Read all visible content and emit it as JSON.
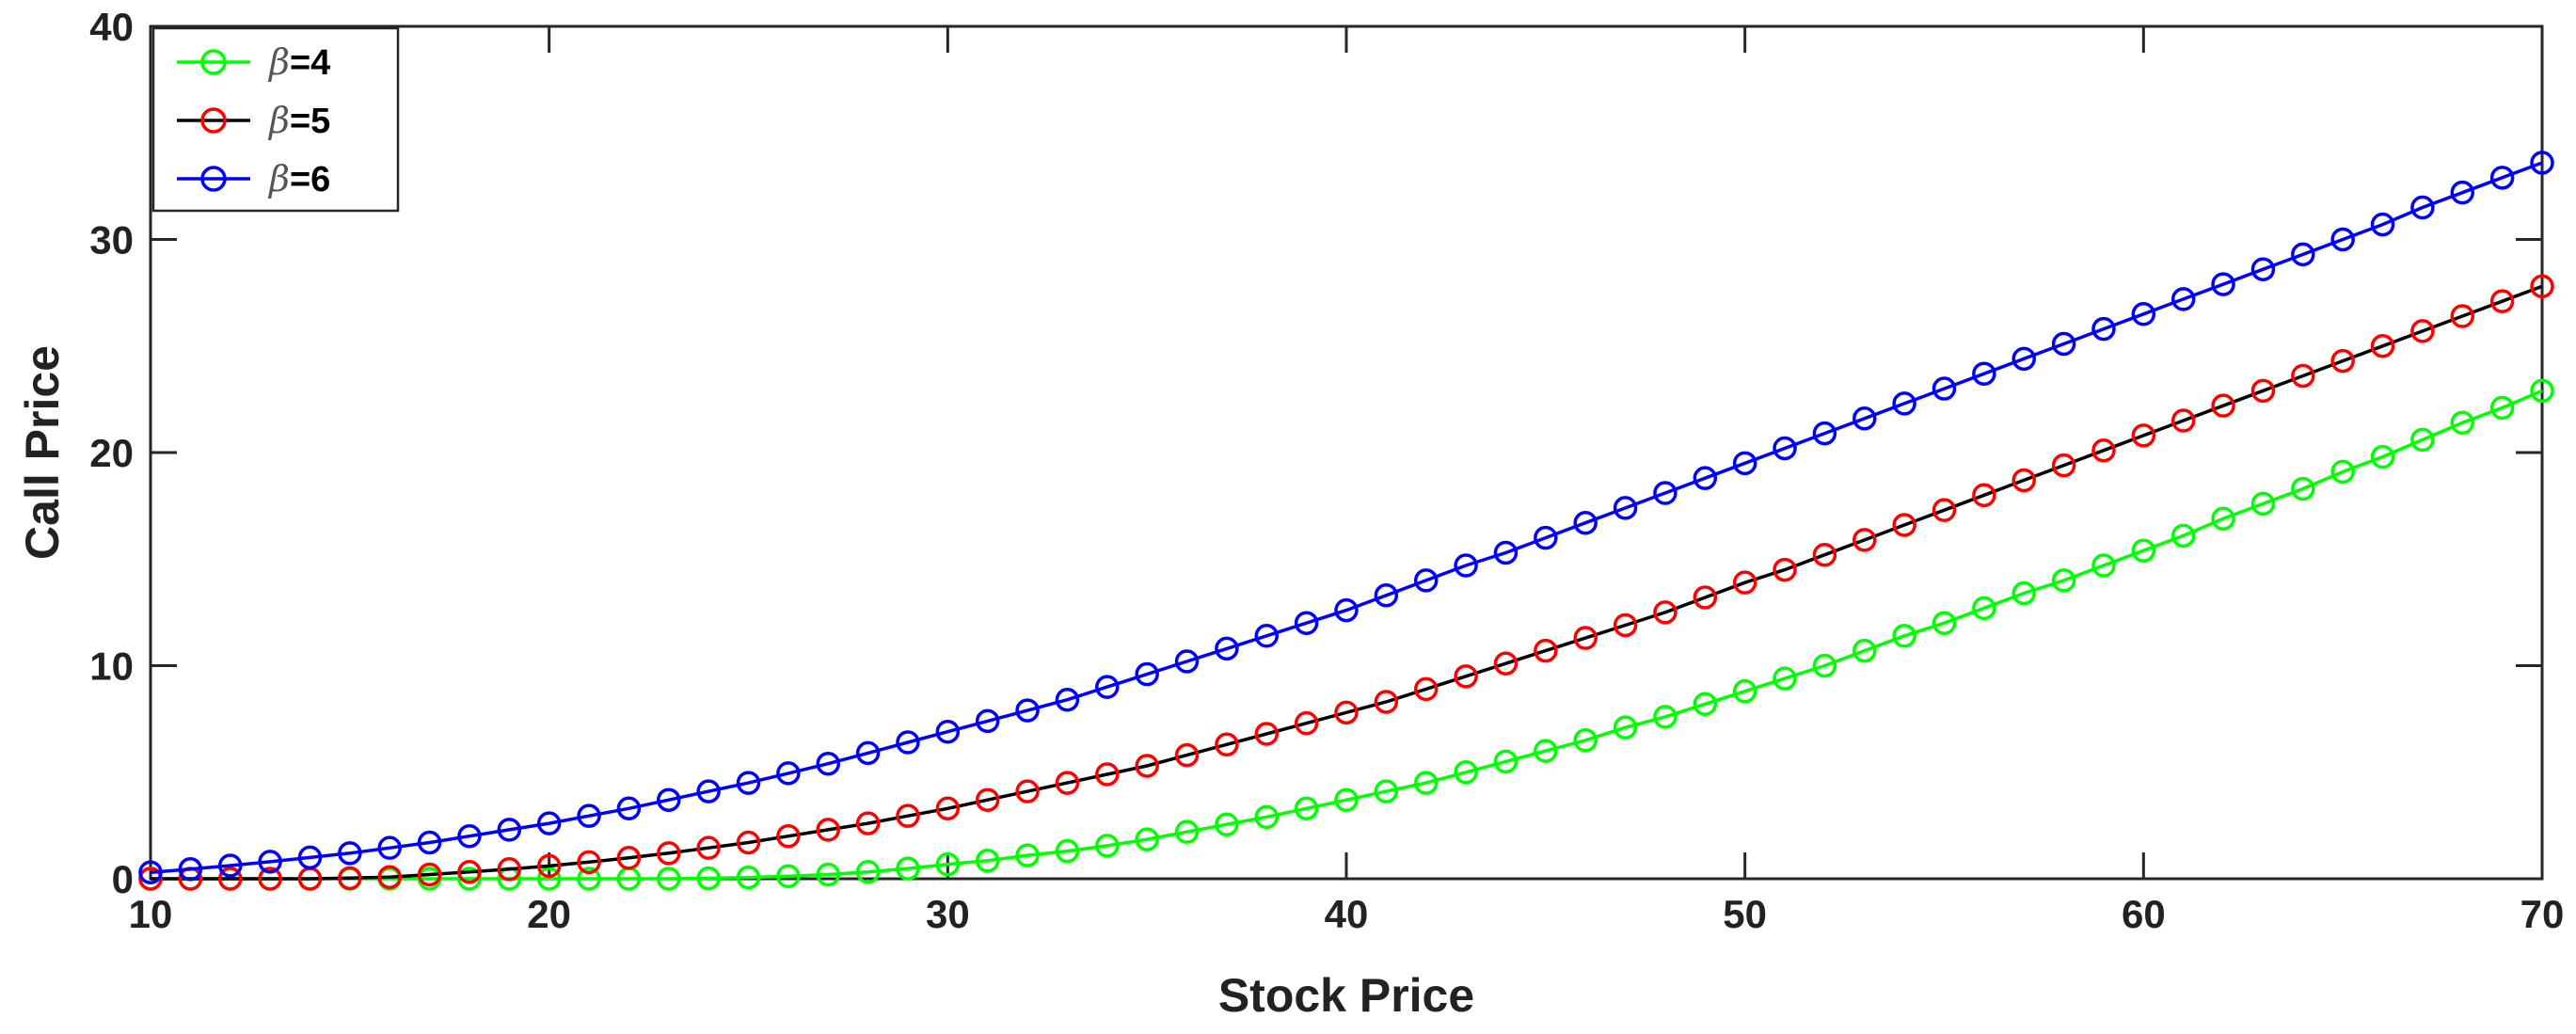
{
  "chart_data": {
    "type": "line",
    "title": "",
    "xlabel": "Stock Price",
    "ylabel": "Call Price",
    "xlim": [
      10,
      70
    ],
    "ylim": [
      0,
      40
    ],
    "xticks": [
      "10",
      "20",
      "30",
      "40",
      "50",
      "60",
      "70"
    ],
    "yticks": [
      "0",
      "10",
      "20",
      "30",
      "40"
    ],
    "grid": false,
    "legend_position": "top-left",
    "marker": "circle-open",
    "x": [
      10,
      11,
      12,
      13,
      14,
      15,
      16,
      17,
      18,
      19,
      20,
      21,
      22,
      23,
      24,
      25,
      26,
      27,
      28,
      29,
      30,
      31,
      32,
      33,
      34,
      35,
      36,
      37,
      38,
      39,
      40,
      41,
      42,
      43,
      44,
      45,
      46,
      47,
      48,
      49,
      50,
      51,
      52,
      53,
      54,
      55,
      56,
      57,
      58,
      59,
      60,
      61,
      62,
      63,
      64,
      65,
      66,
      67,
      68,
      69,
      70
    ],
    "series": [
      {
        "name": "β=4",
        "label_symbol": "β",
        "label_value": "=4",
        "line_color": "#00ff00",
        "marker_color": "#00ff00",
        "values": [
          0,
          0,
          0,
          0,
          0,
          0,
          0,
          0,
          0,
          0,
          0,
          0,
          0,
          0,
          0.02,
          0.06,
          0.12,
          0.2,
          0.32,
          0.48,
          0.68,
          0.85,
          1.1,
          1.3,
          1.55,
          1.85,
          2.2,
          2.55,
          2.9,
          3.3,
          3.7,
          4.1,
          4.5,
          5.0,
          5.5,
          6.0,
          6.5,
          7.1,
          7.6,
          8.2,
          8.8,
          9.4,
          10.0,
          10.7,
          11.4,
          12.0,
          12.7,
          13.4,
          14.0,
          14.7,
          15.4,
          16.1,
          16.9,
          17.6,
          18.3,
          19.1,
          19.8,
          20.6,
          21.4,
          22.1,
          22.9
        ]
      },
      {
        "name": "β=5",
        "label_symbol": "β",
        "label_value": "=5",
        "line_color": "#000000",
        "marker_color": "#ff0000",
        "values": [
          0,
          0,
          0,
          0,
          0,
          0.03,
          0.08,
          0.2,
          0.32,
          0.45,
          0.6,
          0.78,
          0.98,
          1.2,
          1.45,
          1.7,
          2.0,
          2.3,
          2.6,
          2.95,
          3.3,
          3.7,
          4.1,
          4.5,
          4.9,
          5.3,
          5.8,
          6.3,
          6.8,
          7.3,
          7.8,
          8.3,
          8.9,
          9.5,
          10.1,
          10.7,
          11.3,
          11.9,
          12.5,
          13.2,
          13.9,
          14.5,
          15.2,
          15.9,
          16.6,
          17.3,
          18.0,
          18.7,
          19.4,
          20.1,
          20.8,
          21.5,
          22.2,
          22.9,
          23.6,
          24.3,
          25.0,
          25.7,
          26.4,
          27.1,
          27.8
        ]
      },
      {
        "name": "β=6",
        "label_symbol": "β",
        "label_value": "=6",
        "line_color": "#0000ff",
        "marker_color": "#0000ff",
        "values": [
          0.3,
          0.45,
          0.62,
          0.8,
          1.0,
          1.2,
          1.45,
          1.7,
          2.0,
          2.3,
          2.6,
          2.95,
          3.3,
          3.7,
          4.1,
          4.5,
          4.95,
          5.4,
          5.9,
          6.4,
          6.9,
          7.4,
          7.9,
          8.4,
          9.0,
          9.6,
          10.2,
          10.8,
          11.4,
          12.0,
          12.6,
          13.3,
          14.0,
          14.7,
          15.3,
          16.0,
          16.7,
          17.4,
          18.1,
          18.8,
          19.5,
          20.2,
          20.9,
          21.6,
          22.3,
          23.0,
          23.7,
          24.4,
          25.1,
          25.8,
          26.5,
          27.2,
          27.9,
          28.6,
          29.3,
          30.0,
          30.7,
          31.5,
          32.2,
          32.9,
          33.6
        ]
      }
    ]
  }
}
